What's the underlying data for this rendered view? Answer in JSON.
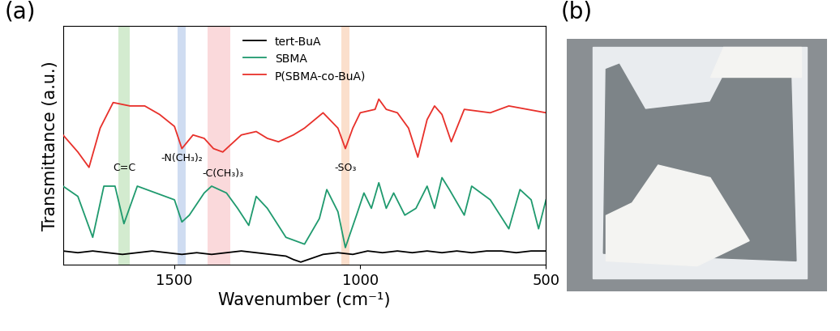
{
  "panel_labels": [
    "(a)",
    "(b)"
  ],
  "chart_data": {
    "type": "line",
    "x_label": "Wavenumber (cm⁻¹)",
    "y_label": "Transmittance (a.u.)",
    "xlim": [
      1800,
      500
    ],
    "xticks": [
      1500,
      1000,
      500
    ],
    "ylim": [
      0,
      140
    ],
    "yticks": [],
    "tick_labels": "x",
    "grid": false,
    "legend": "upper center",
    "series": [
      {
        "name": "tert-BuA",
        "color": "#000000",
        "x": [
          1800,
          1760,
          1720,
          1680,
          1640,
          1600,
          1560,
          1520,
          1480,
          1440,
          1400,
          1360,
          1320,
          1280,
          1240,
          1200,
          1180,
          1160,
          1140,
          1100,
          1060,
          1020,
          980,
          940,
          900,
          860,
          820,
          780,
          740,
          700,
          660,
          620,
          580,
          540,
          500
        ],
        "values": [
          8,
          7,
          8,
          7,
          6,
          7,
          8,
          7,
          6,
          7,
          6,
          7,
          8,
          7,
          6,
          5,
          3,
          1.5,
          3,
          6,
          7,
          6,
          8,
          7,
          8,
          7,
          8,
          7,
          8,
          7,
          8,
          8,
          7,
          8,
          8
        ]
      },
      {
        "name": "SBMA",
        "color": "#1f9a6e",
        "x": [
          1800,
          1760,
          1720,
          1690,
          1660,
          1636,
          1600,
          1550,
          1500,
          1480,
          1460,
          1420,
          1400,
          1380,
          1360,
          1330,
          1300,
          1280,
          1250,
          1200,
          1150,
          1110,
          1090,
          1060,
          1040,
          1010,
          990,
          970,
          950,
          930,
          910,
          880,
          850,
          820,
          800,
          780,
          760,
          720,
          700,
          650,
          600,
          570,
          540,
          520,
          500
        ],
        "values": [
          46,
          40,
          16,
          46,
          46,
          24,
          46,
          42,
          38,
          25,
          29,
          42,
          46,
          44,
          42,
          33,
          23,
          40,
          33,
          16,
          12,
          27,
          44,
          31,
          10,
          29,
          42,
          33,
          48,
          33,
          42,
          29,
          33,
          46,
          33,
          51,
          44,
          29,
          46,
          38,
          21,
          44,
          38,
          21,
          38
        ]
      },
      {
        "name": "P(SBMA-co-BuA)",
        "color": "#e8302a",
        "x": [
          1800,
          1760,
          1730,
          1700,
          1665,
          1620,
          1580,
          1540,
          1500,
          1480,
          1450,
          1420,
          1395,
          1370,
          1340,
          1320,
          1280,
          1250,
          1220,
          1180,
          1150,
          1100,
          1060,
          1040,
          1020,
          1000,
          960,
          950,
          930,
          900,
          870,
          845,
          820,
          800,
          780,
          755,
          720,
          650,
          600,
          550,
          500
        ],
        "values": [
          76,
          66,
          57,
          80,
          95,
          93,
          93,
          88,
          81,
          68,
          76,
          74,
          68,
          66,
          72,
          76,
          78,
          74,
          72,
          76,
          80,
          89,
          80,
          68,
          80,
          89,
          91,
          97,
          91,
          89,
          80,
          63,
          85,
          93,
          88,
          72,
          91,
          89,
          93,
          91,
          89
        ]
      }
    ],
    "annotations": [
      {
        "text": "C=C",
        "range": [
          1652,
          1620
        ],
        "color": "#c8e6c3"
      },
      {
        "text": "-N(CH₃)₂",
        "range": [
          1492,
          1470
        ],
        "color": "#c4d4ee"
      },
      {
        "text": "-C(CH₃)₃",
        "range": [
          1410,
          1350
        ],
        "color": "#f9d0d2"
      },
      {
        "text": "-SO₃",
        "range": [
          1050,
          1028
        ],
        "color": "#fbd7c0"
      }
    ]
  }
}
